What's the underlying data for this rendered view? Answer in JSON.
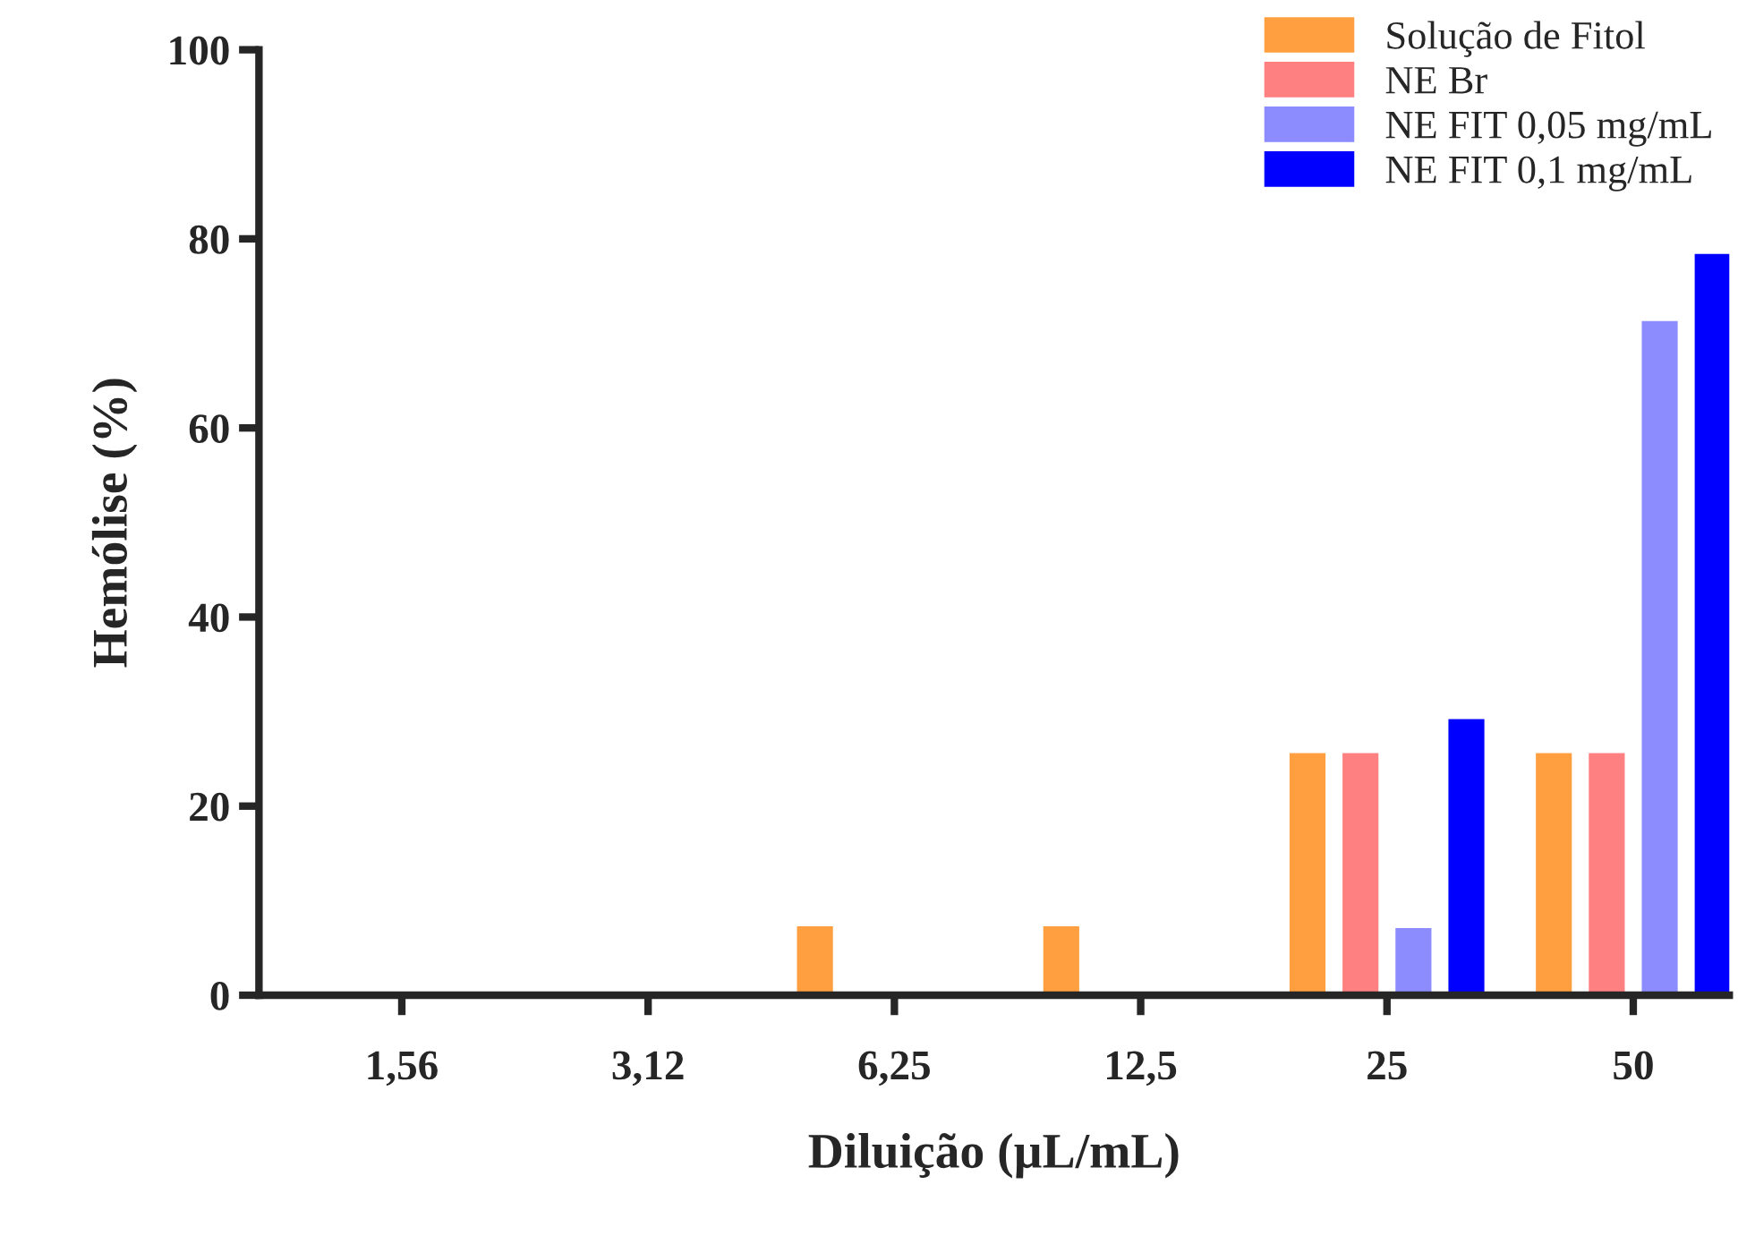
{
  "chart_data": {
    "type": "bar",
    "xlabel": "Diluição (µL/mL)",
    "ylabel": "Hemólise (%)",
    "categories": [
      "1,56",
      "3,12",
      "6,25",
      "12,5",
      "25",
      "50"
    ],
    "series": [
      {
        "name": "Solução de Fitol",
        "color": "#ff9f40",
        "values": [
          0,
          0,
          7.3,
          7.3,
          25.6,
          25.6
        ]
      },
      {
        "name": "NE Br",
        "color": "#ff8080",
        "values": [
          0,
          0,
          0,
          0,
          25.6,
          25.6
        ]
      },
      {
        "name": "NE FIT 0,05 mg/mL",
        "color": "#8c8cff",
        "values": [
          0,
          0,
          0,
          0,
          7.1,
          71.3
        ]
      },
      {
        "name": "NE FIT 0,1 mg/mL",
        "color": "#0000ff",
        "values": [
          0,
          0,
          0,
          0,
          29.2,
          78.4
        ]
      }
    ],
    "ylim": [
      0,
      100
    ],
    "yticks": [
      0,
      20,
      40,
      60,
      80,
      100
    ],
    "grid": false,
    "legend": "top right"
  }
}
